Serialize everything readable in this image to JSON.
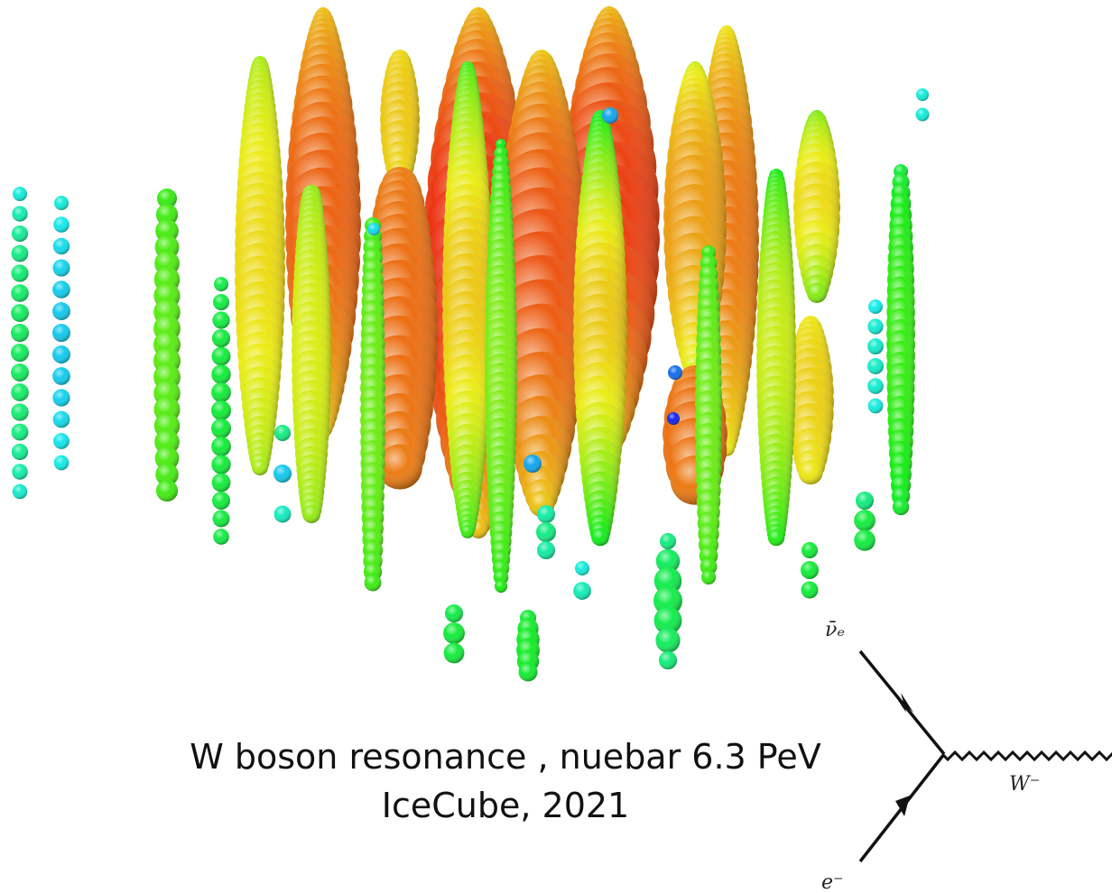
{
  "caption": {
    "lines": [
      "W boson resonance , nuebar 6.3 PeV",
      "IceCube, 2021"
    ]
  },
  "diagram": {
    "labels": {
      "incoming_top": "ν̄ₑ",
      "boson": "W⁻",
      "incoming_bottom": "e⁻"
    }
  }
}
